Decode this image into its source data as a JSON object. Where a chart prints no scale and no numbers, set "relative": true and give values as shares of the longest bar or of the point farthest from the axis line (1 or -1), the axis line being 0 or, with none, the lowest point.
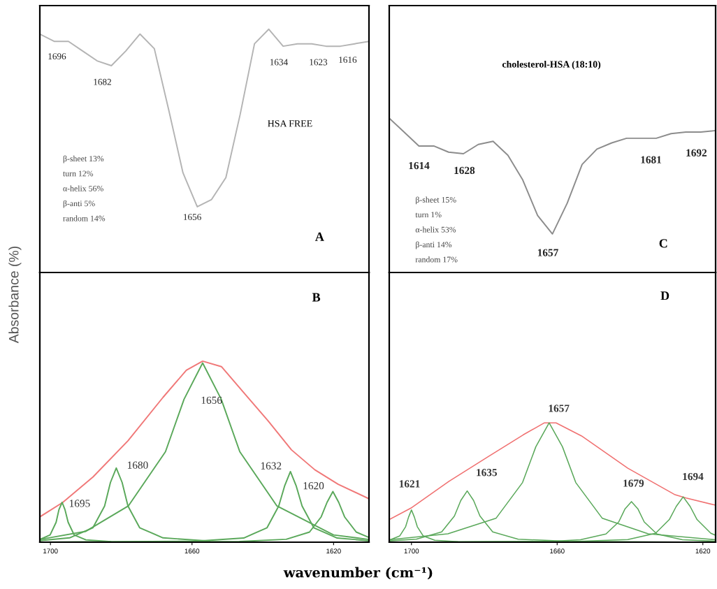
{
  "chart_data": [
    {
      "type": "line",
      "relative": true,
      "title": "HSA FREE",
      "tick_labels": false,
      "categories": [
        null,
        null,
        null,
        null,
        null,
        null,
        null,
        null,
        null,
        null,
        null,
        null,
        null,
        null,
        null,
        null,
        null,
        null,
        null,
        null,
        null,
        null,
        null,
        null
      ],
      "series": [
        {
          "color": "#b4b4b4",
          "values": [
            0.98,
            0.95,
            0.95,
            0.91,
            0.87,
            0.85,
            0.91,
            0.98,
            0.92,
            0.67,
            0.41,
            0.27,
            0.3,
            0.39,
            0.65,
            0.94,
            1.0,
            0.93,
            0.94,
            0.94,
            0.93,
            0.93,
            0.94,
            0.95
          ]
        }
      ],
      "annotations": [
        "1696",
        "1682",
        "1656",
        "1634",
        "1623",
        "1616",
        "β-sheet 13%",
        "turn 12%",
        "α-helix 56%",
        "β-anti 5%",
        "random 14%",
        "A"
      ]
    },
    {
      "type": "line",
      "relative": true,
      "xlim": [
        1703,
        1610
      ],
      "xticks": [
        1700,
        1660,
        1620
      ],
      "tick_labels": "x",
      "xlabel": "wavenumber (cm⁻¹)",
      "ylabel": "Absorbance (%)",
      "series": [
        {
          "color": "#f07878",
          "x": [
            1703,
            1696.5,
            1688.0,
            1678.1,
            1668.2,
            1661.6,
            1657.0,
            1651.7,
            1645.1,
            1638.5,
            1631.9,
            1625.3,
            1618.7,
            1610
          ],
          "values": [
            0.14,
            0.22,
            0.36,
            0.56,
            0.8,
            0.95,
            1.0,
            0.97,
            0.82,
            0.67,
            0.51,
            0.4,
            0.32,
            0.24
          ]
        },
        {
          "color": "#5aa85a",
          "x": [
            1703,
            1700.1,
            1698.4,
            1697.6,
            1696.7,
            1695.9,
            1695.0,
            1693.3,
            1690,
            1683
          ],
          "values": [
            0.015,
            0.04,
            0.11,
            0.18,
            0.22,
            0.18,
            0.11,
            0.04,
            0.013,
            0.003
          ]
        },
        {
          "color": "#5aa85a",
          "x": [
            1703,
            1694.6,
            1688,
            1684.7,
            1683.05,
            1681.4,
            1679.75,
            1678.1,
            1674.8,
            1668.2,
            1655
          ],
          "values": [
            0.009,
            0.024,
            0.08,
            0.2,
            0.33,
            0.41,
            0.33,
            0.2,
            0.08,
            0.024,
            0.006
          ]
        },
        {
          "color": "#5aa85a",
          "x": [
            1703,
            1690,
            1678,
            1667.5,
            1662.25,
            1657,
            1651.75,
            1646.5,
            1636,
            1620,
            1610
          ],
          "values": [
            0.015,
            0.06,
            0.2,
            0.5,
            0.79,
            0.99,
            0.79,
            0.5,
            0.2,
            0.04,
            0.015
          ]
        },
        {
          "color": "#5aa85a",
          "x": [
            1703,
            1658.6,
            1645.4,
            1638.8,
            1635.5,
            1633.85,
            1632.2,
            1630.55,
            1628.9,
            1625.6,
            1619,
            1610
          ],
          "values": [
            0,
            0.006,
            0.023,
            0.08,
            0.2,
            0.31,
            0.39,
            0.31,
            0.2,
            0.08,
            0.023,
            0.008
          ]
        },
        {
          "color": "#5aa85a",
          "x": [
            1703,
            1646.6,
            1633.4,
            1626.8,
            1623.5,
            1621.85,
            1620.2,
            1618.55,
            1616.9,
            1613.6,
            1610
          ],
          "values": [
            0,
            0.004,
            0.016,
            0.056,
            0.14,
            0.22,
            0.28,
            0.22,
            0.14,
            0.056,
            0.026
          ]
        }
      ],
      "annotations": [
        {
          "text": "1695",
          "x": 1696.7,
          "y": 0.22
        },
        {
          "text": "1680",
          "x": 1681.4,
          "y": 0.41
        },
        {
          "text": "1656",
          "x": 1651.75,
          "y": 0.79
        },
        {
          "text": "1632",
          "x": 1632.2,
          "y": 0.39
        },
        {
          "text": "1620",
          "x": 1620.2,
          "y": 0.28
        },
        "B"
      ]
    },
    {
      "type": "line",
      "relative": true,
      "title": "cholesterol-HSA (18:10)",
      "tick_labels": false,
      "categories": [
        null,
        null,
        null,
        null,
        null,
        null,
        null,
        null,
        null,
        null,
        null,
        null,
        null,
        null,
        null,
        null,
        null,
        null,
        null,
        null,
        null,
        null,
        null
      ],
      "series": [
        {
          "color": "#8c8c8c",
          "values": [
            1.0,
            0.91,
            0.82,
            0.82,
            0.78,
            0.77,
            0.83,
            0.85,
            0.76,
            0.6,
            0.37,
            0.25,
            0.45,
            0.7,
            0.8,
            0.84,
            0.87,
            0.87,
            0.87,
            0.9,
            0.91,
            0.91,
            0.92
          ]
        }
      ],
      "annotations": [
        "1614",
        "1628",
        "1657",
        "1681",
        "1692",
        "β-sheet 15%",
        "turn 1%",
        "α-helix 53%",
        "β-anti 14%",
        "random 17%",
        "C"
      ]
    },
    {
      "type": "line",
      "relative": true,
      "xlim": [
        1706.1,
        1616.5
      ],
      "xticks": [
        1700,
        1660,
        1620
      ],
      "tick_labels": "x",
      "series": [
        {
          "color": "#f07070",
          "x": [
            1706.1,
            1699.9,
            1689.7,
            1678.8,
            1669.3,
            1663.5,
            1660.3,
            1653.3,
            1640.6,
            1627.8,
            1624.6,
            1616.5
          ],
          "values": [
            0.19,
            0.29,
            0.51,
            0.72,
            0.9,
            1.0,
            1.0,
            0.89,
            0.62,
            0.4,
            0.37,
            0.31
          ]
        },
        {
          "color": "#5aa85a",
          "x": [
            1706.1,
            1703.2,
            1701.6,
            1700.8,
            1700,
            1699.2,
            1698.4,
            1696.8,
            1693.6,
            1687.2,
            1660
          ],
          "values": [
            0.017,
            0.053,
            0.13,
            0.21,
            0.27,
            0.21,
            0.13,
            0.053,
            0.016,
            0.004,
            0
          ]
        },
        {
          "color": "#5aa85a",
          "x": [
            1706.1,
            1698.7,
            1691.7,
            1688.2,
            1686.45,
            1684.7,
            1682.95,
            1681.2,
            1677.7,
            1670.7,
            1656.7,
            1616.5
          ],
          "values": [
            0.011,
            0.025,
            0.086,
            0.22,
            0.35,
            0.43,
            0.35,
            0.22,
            0.086,
            0.025,
            0.007,
            0
          ]
        },
        {
          "color": "#5aa85a",
          "x": [
            1706.1,
            1690,
            1676.8,
            1669.5,
            1665.85,
            1662.2,
            1658.55,
            1654.9,
            1647.6,
            1635,
            1616.5
          ],
          "values": [
            0.02,
            0.07,
            0.2,
            0.5,
            0.8,
            1.0,
            0.8,
            0.5,
            0.2,
            0.07,
            0.02
          ]
        },
        {
          "color": "#5aa85a",
          "x": [
            1706.1,
            1660.6,
            1653.6,
            1646.6,
            1643.1,
            1641.35,
            1639.6,
            1637.85,
            1636.1,
            1632.6,
            1625.6,
            1616.5
          ],
          "values": [
            0,
            0.009,
            0.02,
            0.069,
            0.17,
            0.28,
            0.34,
            0.28,
            0.17,
            0.069,
            0.02,
            0.008
          ]
        },
        {
          "color": "#5aa85a",
          "x": [
            1706.1,
            1655.8,
            1640.6,
            1633,
            1629.2,
            1627.3,
            1625.4,
            1623.5,
            1621.6,
            1617.8,
            1616.5
          ],
          "values": [
            0,
            0.006,
            0.022,
            0.075,
            0.19,
            0.3,
            0.38,
            0.3,
            0.19,
            0.075,
            0.058
          ]
        }
      ],
      "annotations": [
        {
          "text": "1621",
          "x": 1700,
          "y": 0.27
        },
        {
          "text": "1635",
          "x": 1684.7,
          "y": 0.43
        },
        {
          "text": "1657",
          "x": 1662.2,
          "y": 1.0
        },
        {
          "text": "1679",
          "x": 1639.6,
          "y": 0.34
        },
        {
          "text": "1694",
          "x": 1625.4,
          "y": 0.38
        },
        "D"
      ]
    }
  ]
}
